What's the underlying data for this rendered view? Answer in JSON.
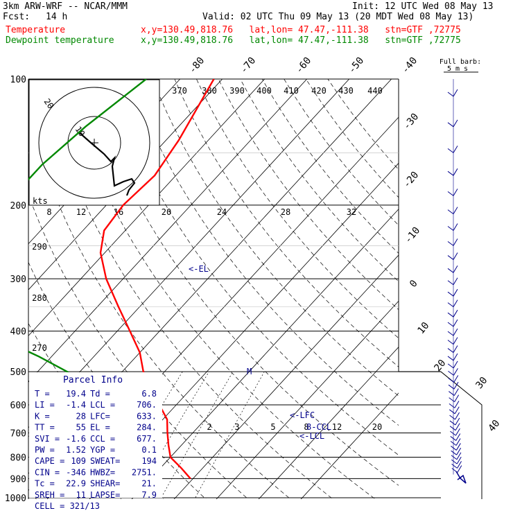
{
  "header": {
    "model": "3km ARW-WRF -- NCAR/MMM",
    "init": "Init: 12 UTC Wed 08 May 13",
    "fcst_label": "Fcst:",
    "fcst_value": "14 h",
    "valid": "Valid: 02 UTC Thu 09 May 13 (20 MDT Wed 08 May 13)",
    "temp_label": "Temperature",
    "temp_info": "x,y=130.49,818.76   lat,lon= 47.47,-111.38   stn=GTF ,72775",
    "dew_label": "Dewpoint temperature",
    "dew_info": "x,y=130.49,818.76   lat,lon= 47.47,-111.38   stn=GTF ,72775"
  },
  "barb_label": [
    "Full barb:",
    "5 m s"
  ],
  "hodograph": {
    "kts_label": "kts",
    "ring_labels": [
      "10",
      "20"
    ],
    "speed_ticks": [
      "8",
      "12",
      "16",
      "20",
      "24",
      "28",
      "32"
    ]
  },
  "parcel_info": {
    "title": "Parcel Info",
    "rows": [
      [
        "T  =",
        "19.4",
        "Td =",
        "6.8"
      ],
      [
        "LI =",
        "-1.4",
        "LCL =",
        "706."
      ],
      [
        "K  =",
        "28",
        "LFC=",
        "633."
      ],
      [
        "TT =",
        "55",
        "EL =",
        "284."
      ],
      [
        "SVI =",
        "-1.6",
        "CCL =",
        "677."
      ],
      [
        "PW =",
        "1.52",
        "YGP =",
        "0.1"
      ],
      [
        "CAPE =",
        "109",
        "SWEAT=",
        "194"
      ],
      [
        "CIN =",
        "-346",
        "HWBZ=",
        "2751."
      ],
      [
        "Tc =",
        "22.9",
        "SHEAR=",
        "21."
      ],
      [
        "SREH =",
        "11",
        "LAPSE=",
        "7.9"
      ]
    ],
    "cell": "CELL = 321/13"
  },
  "annotations": {
    "el": "<-EL",
    "lfc": "<-LFC",
    "ccl": "8-CCL",
    "lcl": "<-LCL",
    "mark": "M"
  },
  "colors": {
    "temperature": "#ff0000",
    "dewpoint": "#008800",
    "wind": "#00008b",
    "grid": "#000000"
  },
  "chart_data": {
    "type": "line",
    "title": "",
    "ylabel": "",
    "xlabel": "",
    "pressure_levels": [
      "100",
      "200",
      "300",
      "400",
      "500",
      "600",
      "700",
      "800",
      "900",
      "1000"
    ],
    "isotherm_labels": [
      "-80",
      "-70",
      "-60",
      "-50",
      "-40",
      "-30",
      "-20",
      "-10",
      "0",
      "10",
      "20",
      "30",
      "40"
    ],
    "theta_labels": [
      "370",
      "380",
      "390",
      "400",
      "410",
      "420",
      "430",
      "440",
      "290",
      "280",
      "270"
    ],
    "mixing_ratio_labels": [
      "2",
      "3",
      "5",
      "8",
      "12",
      "20"
    ],
    "series": [
      {
        "name": "Temperature",
        "points": [
          [
            100,
            -62
          ],
          [
            140,
            -57
          ],
          [
            170,
            -55
          ],
          [
            200,
            -56
          ],
          [
            230,
            -55
          ],
          [
            260,
            -51
          ],
          [
            300,
            -44
          ],
          [
            350,
            -35
          ],
          [
            400,
            -27
          ],
          [
            450,
            -20
          ],
          [
            500,
            -15
          ],
          [
            550,
            -9
          ],
          [
            600,
            -4
          ],
          [
            650,
            1
          ],
          [
            700,
            4
          ],
          [
            750,
            7
          ],
          [
            800,
            10
          ],
          [
            850,
            15
          ],
          [
            900,
            19.4
          ]
        ]
      },
      {
        "name": "Dewpoint temperature",
        "points": [
          [
            100,
            -78
          ],
          [
            130,
            -82
          ],
          [
            160,
            -84
          ],
          [
            200,
            -84
          ],
          [
            230,
            -86
          ],
          [
            260,
            -82
          ],
          [
            300,
            -72
          ],
          [
            350,
            -67
          ],
          [
            380,
            -66
          ],
          [
            420,
            -55
          ],
          [
            460,
            -43
          ],
          [
            500,
            -33
          ],
          [
            550,
            -25
          ],
          [
            600,
            -17
          ],
          [
            650,
            -10
          ],
          [
            700,
            -12
          ],
          [
            730,
            -6
          ],
          [
            760,
            -3
          ],
          [
            800,
            0
          ],
          [
            850,
            4
          ],
          [
            900,
            6.8
          ]
        ]
      }
    ]
  }
}
